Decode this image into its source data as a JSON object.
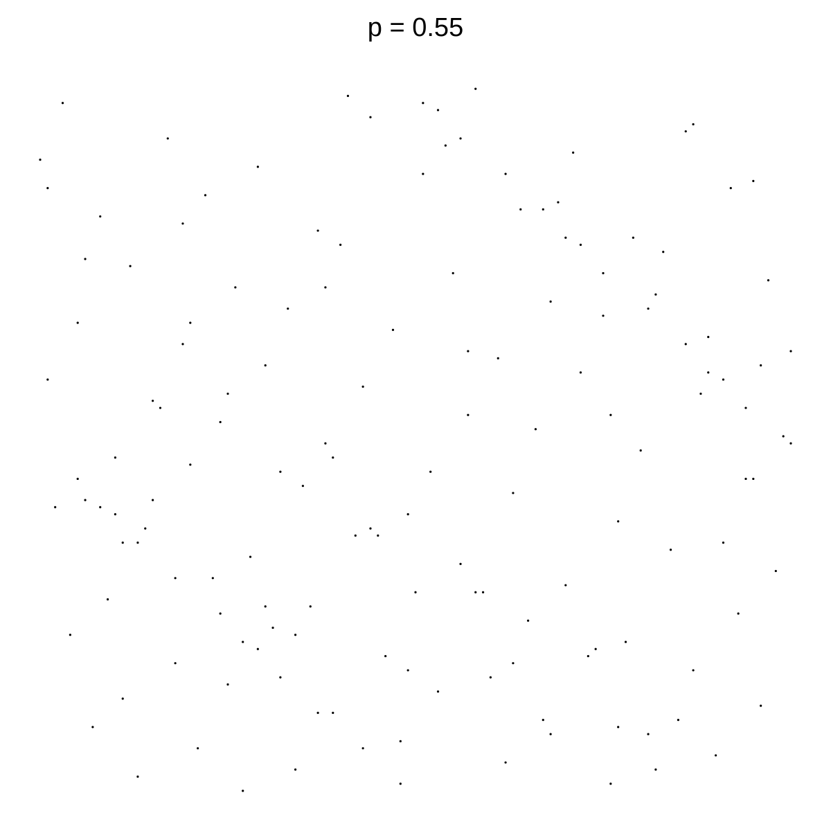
{
  "chart_data": {
    "type": "scatter",
    "title": "p = 0.55",
    "color": "#000000",
    "xlim": [
      0,
      100
    ],
    "ylim": [
      0,
      100
    ],
    "x": [
      3,
      17,
      29,
      44,
      58,
      71,
      86,
      95,
      8,
      22,
      37,
      51,
      64,
      79,
      92,
      12,
      26,
      40,
      55,
      68,
      83,
      97,
      5,
      19,
      33,
      47,
      61,
      75,
      89,
      1,
      15,
      30,
      43,
      57,
      72,
      88,
      99,
      10,
      24,
      38,
      52,
      66,
      80,
      94,
      6,
      20,
      35,
      49,
      63,
      77,
      91,
      2,
      14,
      28,
      42,
      56,
      70,
      84,
      98,
      9,
      23,
      36,
      50,
      65,
      78,
      93,
      4,
      18,
      31,
      46,
      60,
      74,
      87,
      11,
      25,
      39,
      53,
      67,
      81,
      96,
      7,
      21,
      34,
      48,
      62,
      76,
      90,
      13,
      27,
      41,
      54,
      69,
      82,
      100,
      16,
      32,
      45,
      59,
      73,
      85,
      0,
      19,
      38,
      57,
      76,
      95,
      11,
      30,
      49,
      68,
      87,
      6,
      25,
      44,
      63,
      82,
      1,
      20,
      39,
      58,
      77,
      96,
      15,
      34,
      53,
      72,
      91,
      10,
      29,
      48,
      67,
      86,
      5,
      24,
      43,
      62,
      81,
      100,
      18,
      37,
      56,
      75,
      94,
      13,
      32,
      51,
      70,
      89,
      8,
      27
    ],
    "values": [
      97,
      92,
      88,
      95,
      99,
      90,
      93,
      86,
      81,
      84,
      79,
      87,
      82,
      78,
      85,
      74,
      71,
      77,
      73,
      69,
      76,
      72,
      66,
      63,
      68,
      65,
      61,
      67,
      64,
      58,
      55,
      60,
      57,
      53,
      59,
      56,
      50,
      47,
      52,
      49,
      45,
      51,
      48,
      44,
      41,
      46,
      43,
      39,
      42,
      38,
      35,
      40,
      37,
      33,
      36,
      32,
      29,
      34,
      31,
      27,
      30,
      26,
      28,
      24,
      21,
      25,
      22,
      18,
      23,
      19,
      16,
      20,
      17,
      13,
      15,
      11,
      14,
      10,
      8,
      12,
      9,
      6,
      3,
      7,
      4,
      1,
      5,
      2,
      0,
      98,
      91,
      83,
      70,
      62,
      54,
      45,
      36,
      28,
      19,
      10,
      89,
      80,
      71,
      62,
      53,
      44,
      35,
      26,
      17,
      8,
      94,
      75,
      56,
      37,
      18,
      3,
      85,
      66,
      47,
      28,
      9,
      60,
      41,
      22,
      96,
      77,
      58,
      39,
      20,
      1,
      82,
      63,
      44,
      25,
      6,
      87,
      68,
      49,
      30,
      11,
      92,
      73,
      54,
      35,
      16,
      97,
      78,
      59,
      40,
      21
    ]
  }
}
